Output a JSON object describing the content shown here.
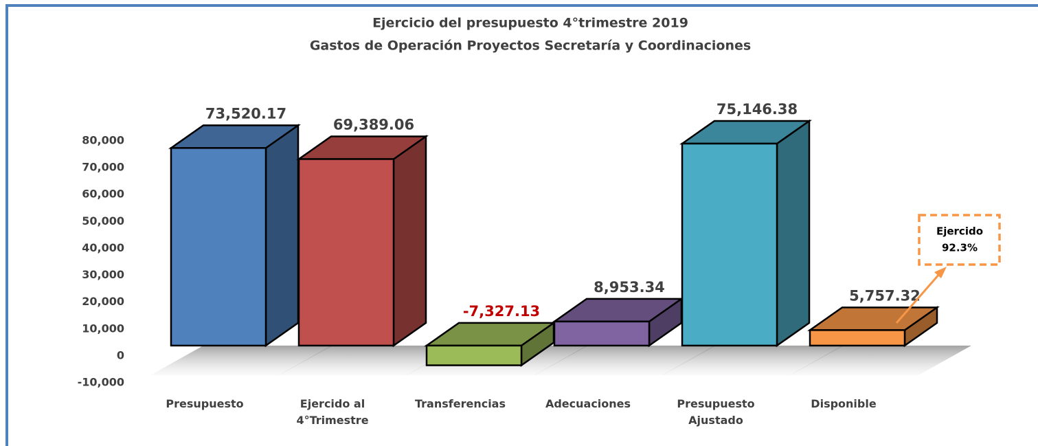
{
  "chart_data": {
    "type": "bar3d",
    "title": [
      "Ejercicio del presupuesto 4°trimestre 2019",
      "Gastos de Operación Proyectos Secretaría y Coordinaciones"
    ],
    "categories": [
      "Presupuesto",
      "Ejercido al 4°Trimestre",
      "Transferencias",
      "Adecuaciones",
      "Presupuesto Ajustado",
      "Disponible"
    ],
    "values": [
      73520.17,
      69389.06,
      -7327.13,
      8953.34,
      75146.38,
      5757.32
    ],
    "value_labels": [
      "73,520.17",
      "69,389.06",
      "-7,327.13",
      "8,953.34",
      "75,146.38",
      "5,757.32"
    ],
    "colors": [
      "#4f81bd",
      "#c0504d",
      "#9bbb59",
      "#8064a2",
      "#4bacc6",
      "#f79646"
    ],
    "negative_label_color": "#c00000",
    "ylim": [
      -10000,
      80000
    ],
    "yticks": [
      {
        "value": -10000,
        "label": "-10,000"
      },
      0,
      {
        "value": 10000,
        "label": "10,000"
      },
      {
        "value": 20000,
        "label": "20,000"
      },
      {
        "value": 30000,
        "label": "30,000"
      },
      {
        "value": 40000,
        "label": "40,000"
      },
      {
        "value": 50000,
        "label": "50,000"
      },
      {
        "value": 60000,
        "label": "60,000"
      },
      {
        "value": 70000,
        "label": "70,000"
      },
      {
        "value": 80000,
        "label": "80,000"
      }
    ],
    "grid": false,
    "annotation": {
      "text": [
        "Ejercido",
        "92.3%"
      ],
      "color": "#f79646"
    }
  }
}
